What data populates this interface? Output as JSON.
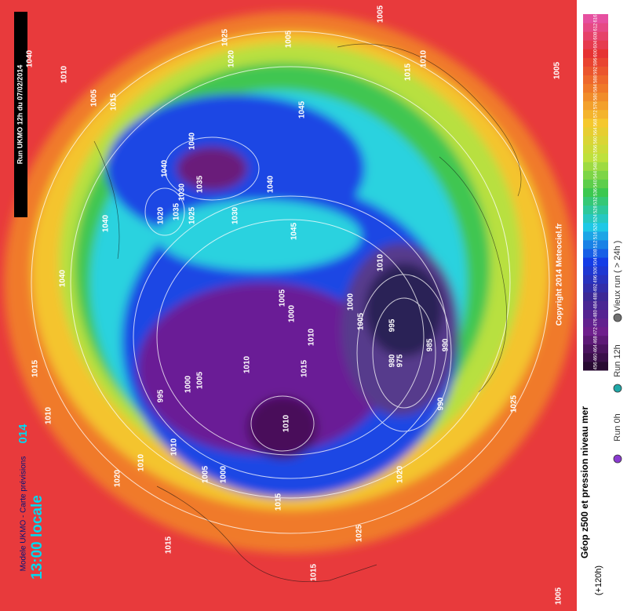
{
  "run_banner": "Run UKMO 12h du 07/02/2014",
  "model_line": "Modele UKMO - Carte prévisions",
  "date_fragment": "014",
  "local_time": "13:00 locale",
  "copyright": "Copyright 2014 Meteociel.fr",
  "panel": {
    "title": "Géop z500 et pression niveau mer",
    "lead": "(+120h)"
  },
  "colorbar": {
    "labels": [
      456,
      460,
      464,
      468,
      472,
      476,
      480,
      484,
      488,
      492,
      496,
      500,
      504,
      508,
      512,
      516,
      520,
      524,
      528,
      532,
      536,
      540,
      544,
      548,
      552,
      556,
      560,
      564,
      568,
      572,
      576,
      580,
      584,
      588,
      592,
      596,
      600,
      604,
      608,
      612,
      616
    ]
  },
  "legend": [
    "Run 0h",
    "Run 12h",
    "Vieux run ( > 24h )"
  ],
  "isobars": [
    1040,
    1010,
    1005,
    1015,
    1020,
    1025,
    1005,
    1005,
    1010,
    1015,
    1005,
    1045,
    1040,
    1040,
    1030,
    1035,
    1020,
    1035,
    1025,
    1030,
    1040,
    1045,
    1010,
    1040,
    1040,
    1005,
    1000,
    1000,
    1005,
    995,
    1010,
    1015,
    1010,
    980,
    975,
    985,
    990,
    995,
    1000,
    1005,
    1015,
    1010,
    1010,
    990,
    1010,
    1005,
    1000,
    1010,
    1020,
    1020,
    1025,
    1015,
    1025,
    1015,
    1015,
    1005
  ]
}
